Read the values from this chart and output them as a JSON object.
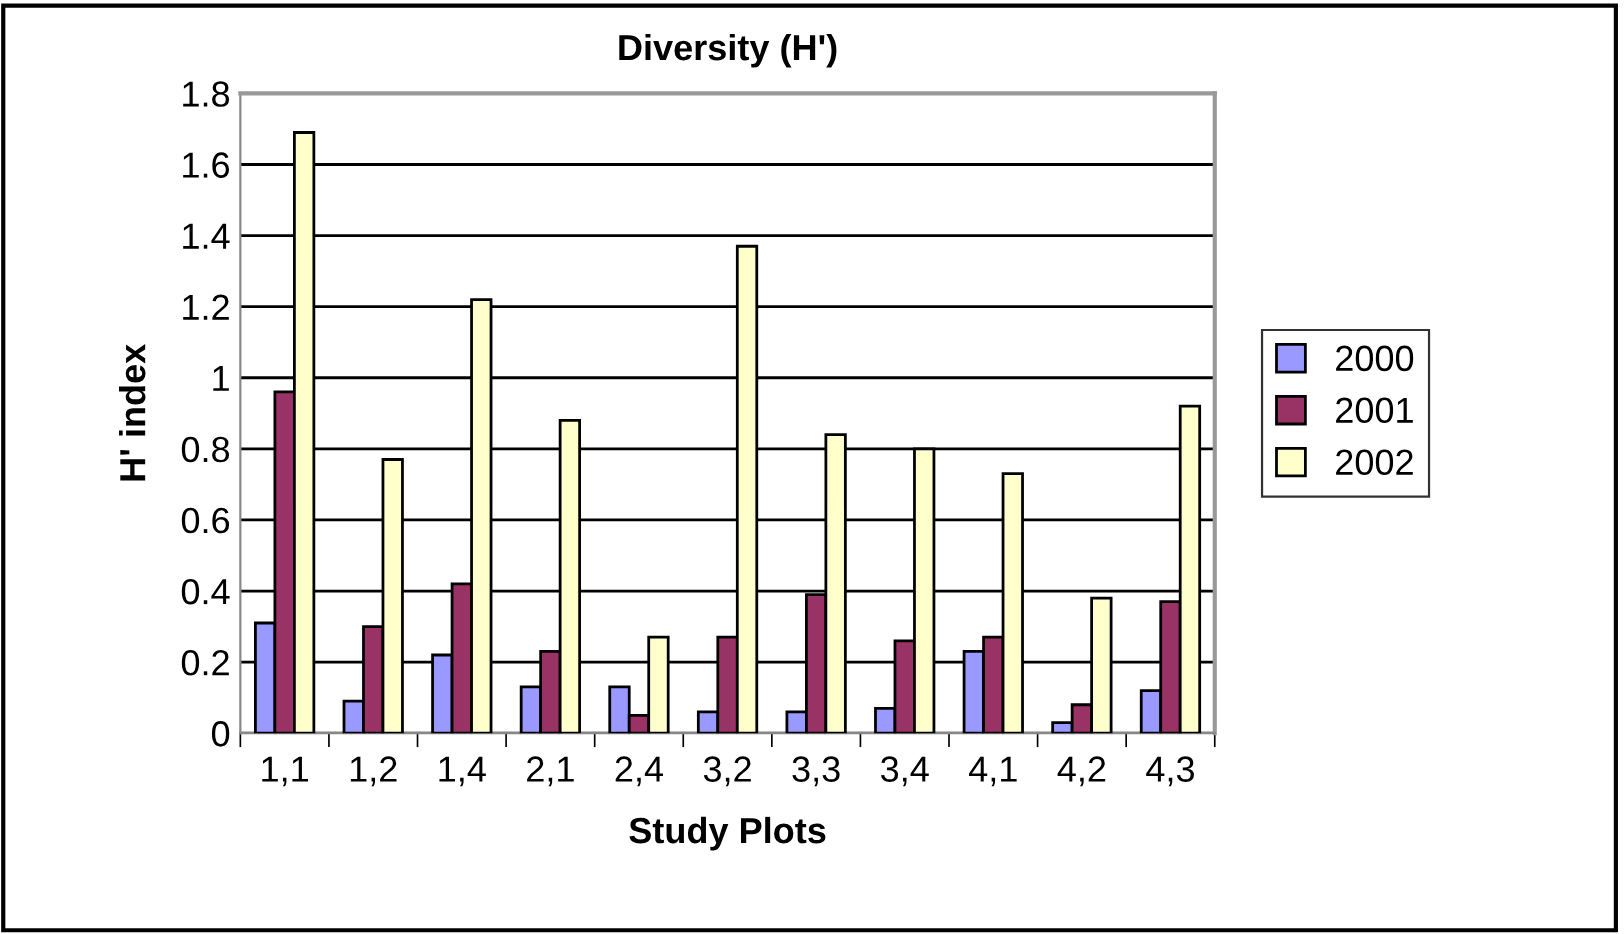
{
  "chart_data": {
    "type": "bar",
    "title": "Diversity (H')",
    "xlabel": "Study Plots",
    "ylabel": "H' index",
    "categories": [
      "1,1",
      "1,2",
      "1,4",
      "2,1",
      "2,4",
      "3,2",
      "3,3",
      "3,4",
      "4,1",
      "4,2",
      "4,3"
    ],
    "series": [
      {
        "name": "2000",
        "color": "#9999ff",
        "values": [
          0.31,
          0.09,
          0.22,
          0.13,
          0.13,
          0.06,
          0.06,
          0.07,
          0.23,
          0.03,
          0.12
        ]
      },
      {
        "name": "2001",
        "color": "#993366",
        "values": [
          0.96,
          0.3,
          0.42,
          0.23,
          0.05,
          0.27,
          0.39,
          0.26,
          0.27,
          0.08,
          0.37
        ]
      },
      {
        "name": "2002",
        "color": "#ffffcc",
        "values": [
          1.69,
          0.77,
          1.22,
          0.88,
          0.27,
          1.37,
          0.84,
          0.8,
          0.73,
          0.38,
          0.92
        ]
      }
    ],
    "ylim": [
      0,
      1.8
    ],
    "yticks": [
      0,
      0.2,
      0.4,
      0.6,
      0.8,
      1,
      1.2,
      1.4,
      1.6,
      1.8
    ],
    "grid": "y",
    "legend": "right"
  }
}
